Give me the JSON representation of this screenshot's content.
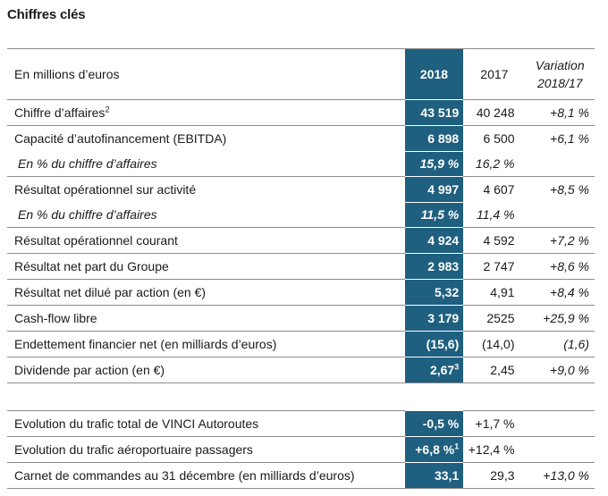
{
  "title": "Chiffres clés",
  "header": {
    "label": "En millions d’euros",
    "year_current": "2018",
    "year_previous": "2017",
    "variation_line1": "Variation",
    "variation_line2": "2018/17"
  },
  "rows": [
    {
      "label": "Chiffre d’affaires",
      "sup": "2",
      "v2018": "43 519",
      "v2017": "40 248",
      "variation": "+8,1 %"
    },
    {
      "label": "Capacité d’autofinancement (EBITDA)",
      "v2018": "6 898",
      "v2017": "6 500",
      "variation": "+6,1 %"
    },
    {
      "label": "En % du chiffre d’affaires",
      "v2018": "15,9 %",
      "v2017": "16,2 %",
      "variation": ""
    },
    {
      "label": "Résultat opérationnel sur activité",
      "v2018": "4 997",
      "v2017": "4 607",
      "variation": "+8,5 %"
    },
    {
      "label": "En % du chiffre d’affaires",
      "v2018": "11,5 %",
      "v2017": "11,4 %",
      "variation": ""
    },
    {
      "label": "Résultat opérationnel courant",
      "v2018": "4 924",
      "v2017": "4 592",
      "variation": "+7,2 %"
    },
    {
      "label": "Résultat net part du Groupe",
      "v2018": "2 983",
      "v2017": "2 747",
      "variation": "+8,6 %"
    },
    {
      "label": "Résultat net dilué par action (en €)",
      "v2018": "5,32",
      "v2017": "4,91",
      "variation": "+8,4 %"
    },
    {
      "label": "Cash-flow libre",
      "v2018": "3 179",
      "v2017": "2525",
      "variation": "+25,9 %"
    },
    {
      "label": "Endettement financier net (en milliards d’euros)",
      "v2018": "(15,6)",
      "v2017": "(14,0)",
      "variation": "(1,6)"
    },
    {
      "label": "Dividende par action (en €)",
      "v2018": "2,67",
      "v2018_sup": "3",
      "v2017": "2,45",
      "variation": "+9,0 %"
    }
  ],
  "rows2": [
    {
      "label": "Evolution du trafic total de VINCI Autoroutes",
      "v2018": "-0,5 %",
      "v2017": "+1,7 %",
      "variation": ""
    },
    {
      "label": "Evolution du trafic aéroportuaire passagers",
      "v2018": "+6,8 %",
      "v2018_sup": "1",
      "v2017": "+12,4 %",
      "variation": ""
    },
    {
      "label": "Carnet de commandes au 31 décembre (en milliards d’euros)",
      "v2018": "33,1",
      "v2017": "29,3",
      "variation": "+13,0 %"
    }
  ]
}
